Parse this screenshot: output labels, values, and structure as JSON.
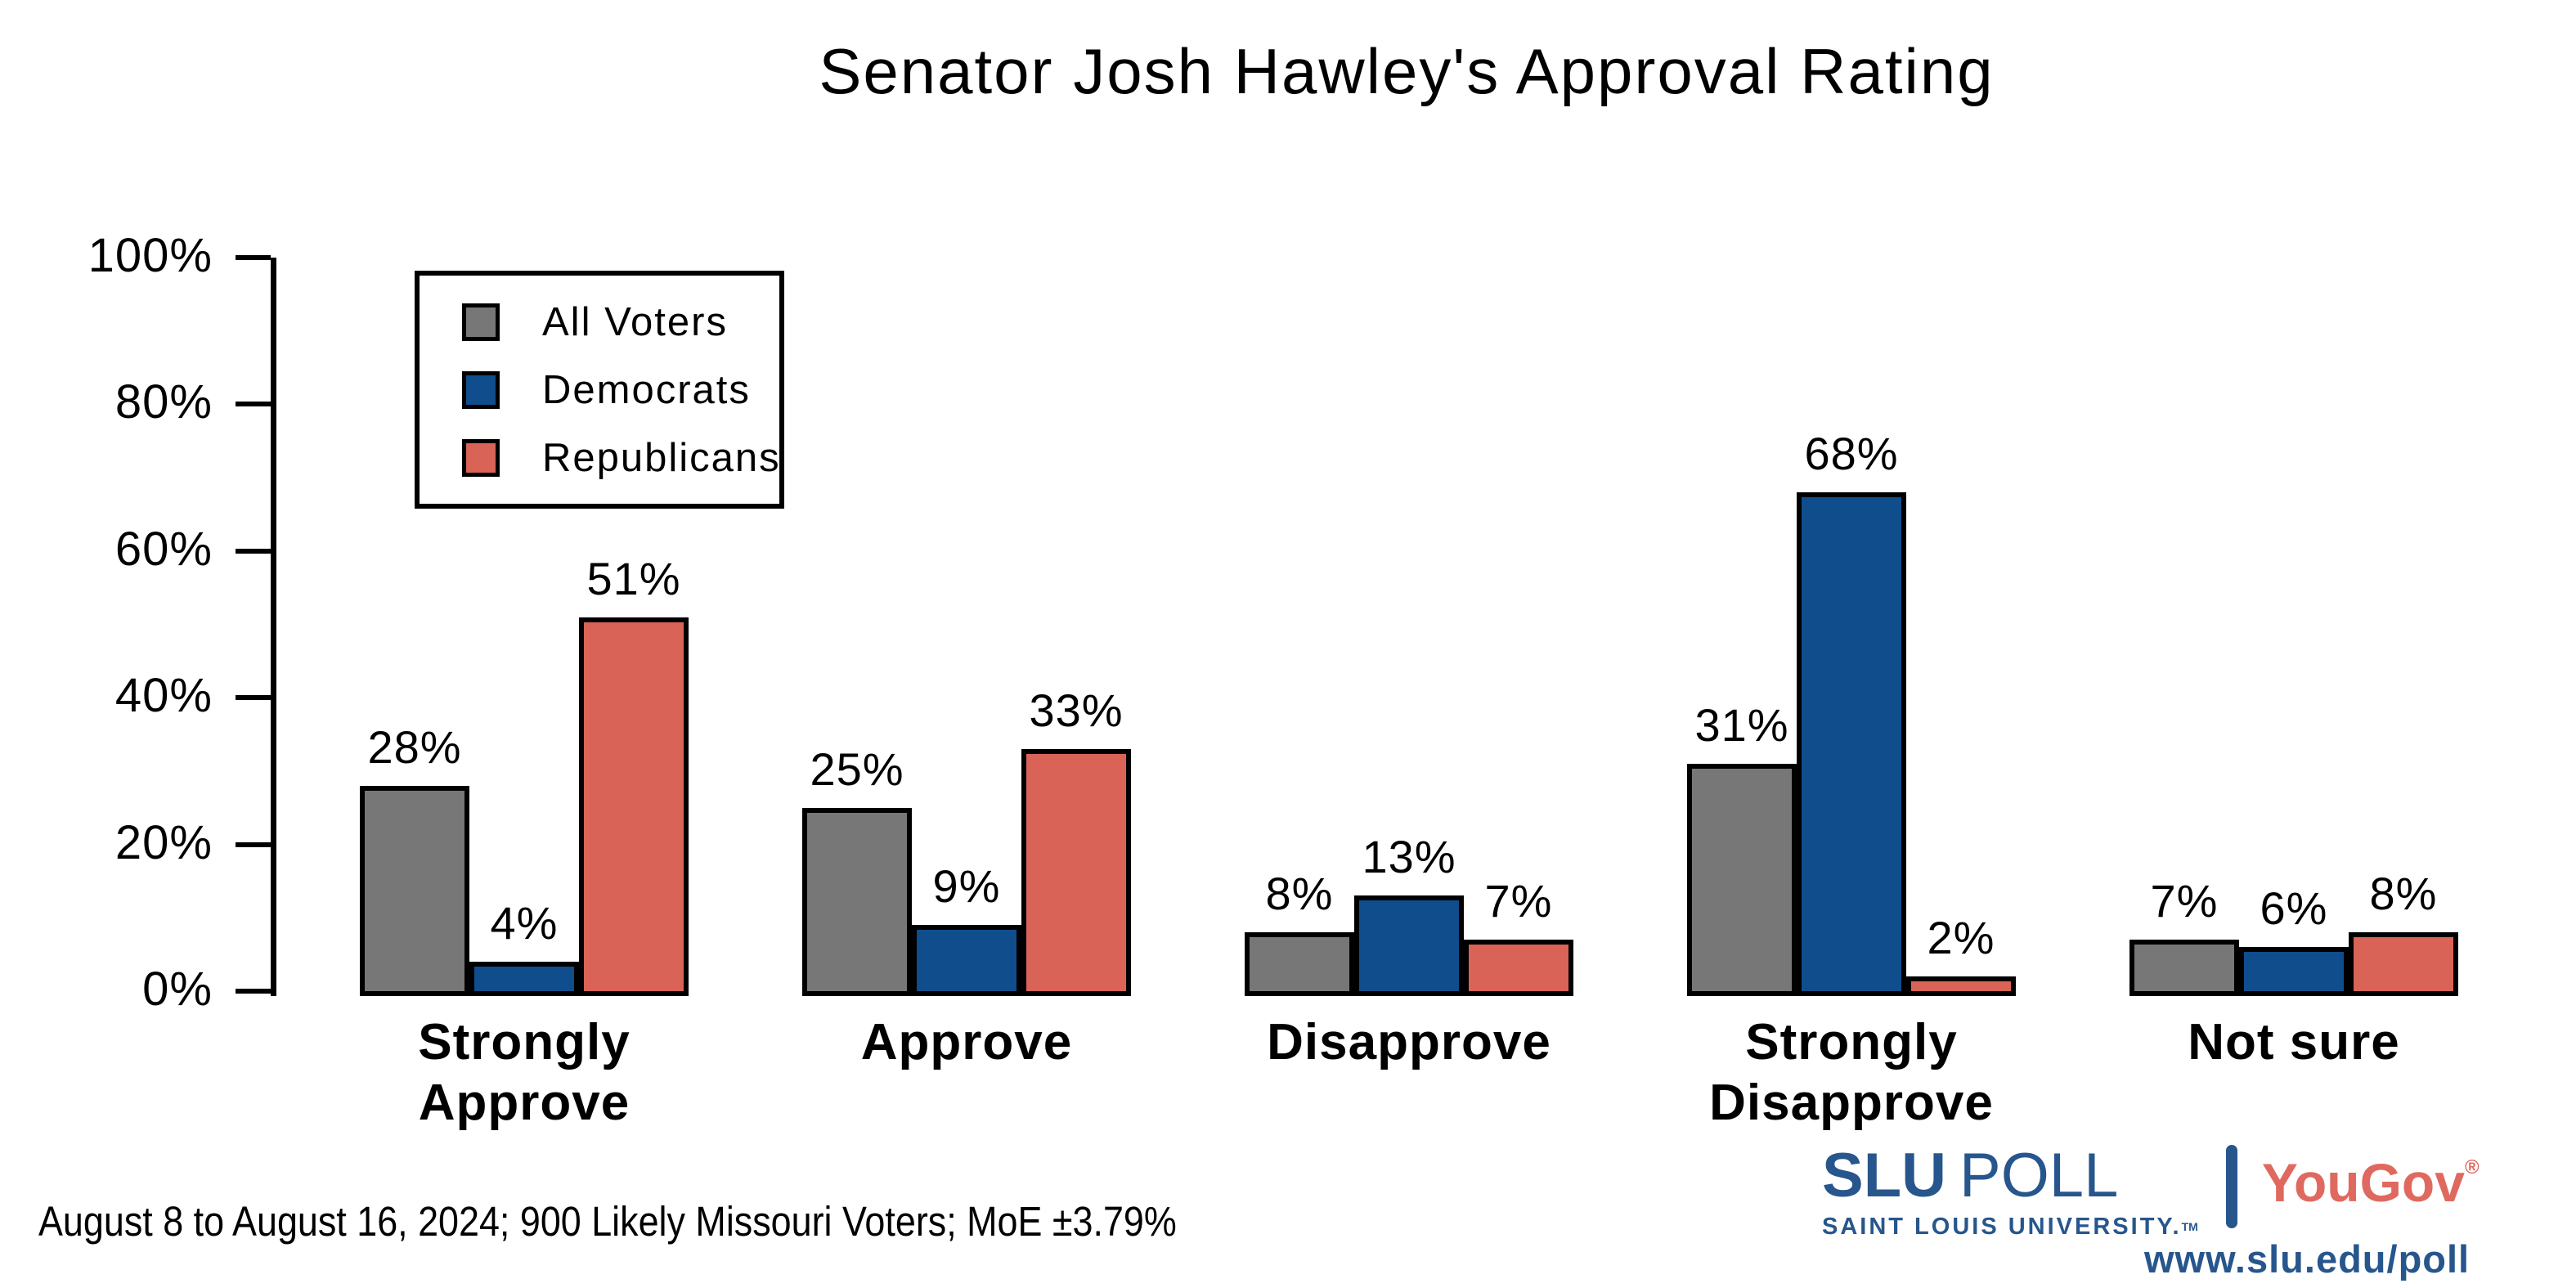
{
  "title": "Senator Josh Hawley's Approval Rating",
  "footer": {
    "source_note": "August 8 to August 16, 2024; 900 Likely Missouri Voters; MoE ±3.79%"
  },
  "branding": {
    "slu": "SLU",
    "poll": "POLL",
    "slu_sub": "SAINT LOUIS UNIVERSITY.",
    "slu_tm": "TM",
    "partner": "YouGov",
    "partner_reg": "®",
    "url": "www.slu.edu/poll",
    "slu_blue": "#27568D",
    "yougov_red": "#E0695F"
  },
  "chart_data": {
    "type": "bar",
    "title": "Senator Josh Hawley's Approval Rating",
    "categories": [
      "Strongly Approve",
      "Approve",
      "Disapprove",
      "Strongly Disapprove",
      "Not sure"
    ],
    "category_label_lines": [
      [
        "Strongly",
        "Approve"
      ],
      [
        "Approve"
      ],
      [
        "Disapprove"
      ],
      [
        "Strongly",
        "Disapprove"
      ],
      [
        "Not sure"
      ]
    ],
    "series": [
      {
        "name": "All Voters",
        "color": "#777777",
        "values": [
          28,
          25,
          8,
          31,
          7
        ]
      },
      {
        "name": "Democrats",
        "color": "#104D8C",
        "values": [
          4,
          9,
          13,
          68,
          6
        ]
      },
      {
        "name": "Republicans",
        "color": "#D96356",
        "values": [
          51,
          33,
          7,
          2,
          8
        ]
      }
    ],
    "value_suffix": "%",
    "ylabel": "",
    "xlabel": "",
    "ylim": [
      0,
      100
    ],
    "yticks": [
      0,
      20,
      40,
      60,
      80,
      100
    ],
    "ytick_suffix": "%",
    "grid": false,
    "legend_position": "top-left",
    "bar_outline_color": "#000000"
  }
}
